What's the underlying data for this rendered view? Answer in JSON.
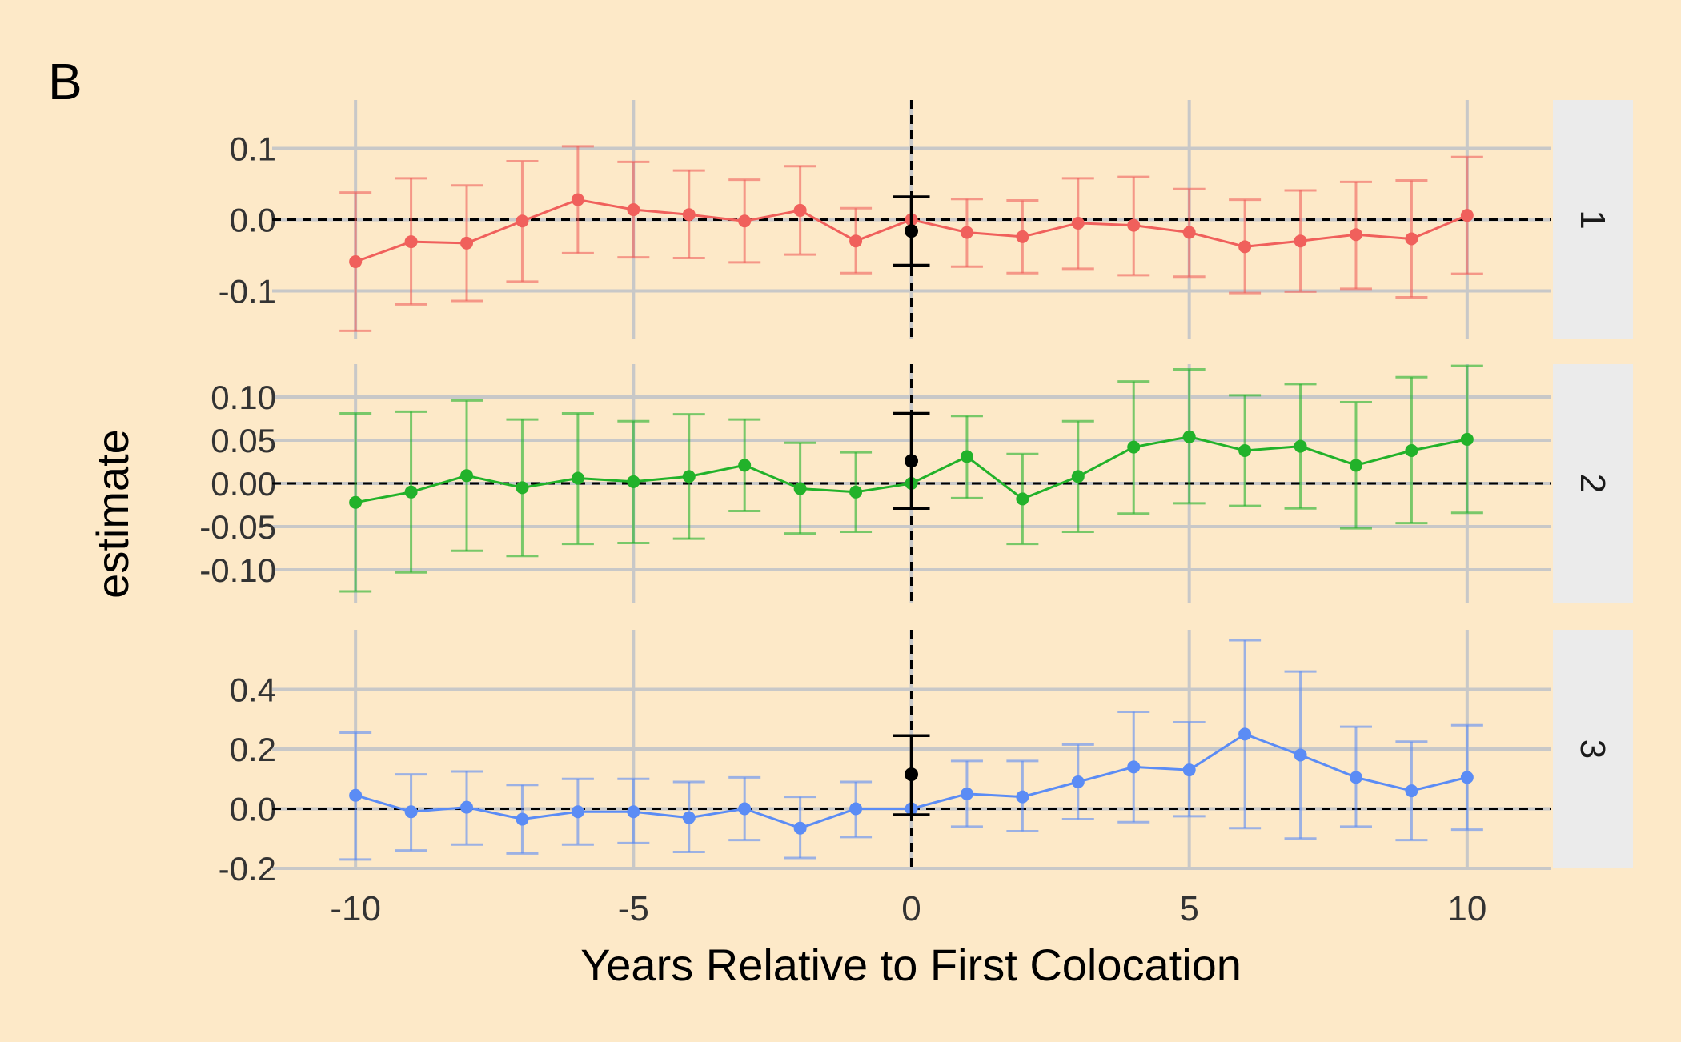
{
  "panel_label": "B",
  "chart_data": {
    "type": "line",
    "layout": "faceted",
    "xlabel": "Years Relative to First Colocation",
    "ylabel": "estimate",
    "xlim": [
      -11.5,
      11.5
    ],
    "x_ticks": [
      -10,
      -5,
      0,
      5,
      10
    ],
    "x_tick_labels": [
      "-10",
      "-5",
      "0",
      "5",
      "10"
    ],
    "x": [
      -10,
      -9,
      -8,
      -7,
      -6,
      -5,
      -4,
      -3,
      -2,
      -1,
      0,
      1,
      2,
      3,
      4,
      5,
      6,
      7,
      8,
      9,
      10
    ],
    "reference_lines": {
      "x": 0,
      "y": 0,
      "style": "dashed"
    },
    "colors": {
      "background": "#fde9c8",
      "grid": "#c8c8c8",
      "strip": "#ebebeb",
      "series_1": "#f0605c",
      "series_2": "#22b22a",
      "series_3": "#5b8cf5",
      "highlight": "#000000"
    },
    "facets": [
      {
        "strip_label": "1",
        "ylim": [
          -0.168,
          0.168
        ],
        "y_ticks": [
          0.1,
          0.0,
          -0.1
        ],
        "y_tick_labels": [
          "0.1",
          "0.0",
          "-0.1"
        ],
        "color": "#f0605c",
        "points": [
          {
            "x": -10,
            "y": -0.059,
            "lo": -0.156,
            "hi": 0.038
          },
          {
            "x": -9,
            "y": -0.031,
            "lo": -0.119,
            "hi": 0.058
          },
          {
            "x": -8,
            "y": -0.033,
            "lo": -0.114,
            "hi": 0.048
          },
          {
            "x": -7,
            "y": -0.002,
            "lo": -0.087,
            "hi": 0.082
          },
          {
            "x": -6,
            "y": 0.028,
            "lo": -0.047,
            "hi": 0.103
          },
          {
            "x": -5,
            "y": 0.014,
            "lo": -0.053,
            "hi": 0.081
          },
          {
            "x": -4,
            "y": 0.007,
            "lo": -0.054,
            "hi": 0.069
          },
          {
            "x": -3,
            "y": -0.002,
            "lo": -0.06,
            "hi": 0.056
          },
          {
            "x": -2,
            "y": 0.013,
            "lo": -0.049,
            "hi": 0.075
          },
          {
            "x": -1,
            "y": -0.03,
            "lo": -0.075,
            "hi": 0.016
          },
          {
            "x": 0,
            "y": 0.0,
            "lo": 0.0,
            "hi": 0.0
          },
          {
            "x": 1,
            "y": -0.018,
            "lo": -0.066,
            "hi": 0.029
          },
          {
            "x": 2,
            "y": -0.024,
            "lo": -0.075,
            "hi": 0.027
          },
          {
            "x": 3,
            "y": -0.005,
            "lo": -0.069,
            "hi": 0.058
          },
          {
            "x": 4,
            "y": -0.008,
            "lo": -0.078,
            "hi": 0.06
          },
          {
            "x": 5,
            "y": -0.018,
            "lo": -0.08,
            "hi": 0.043
          },
          {
            "x": 6,
            "y": -0.038,
            "lo": -0.103,
            "hi": 0.028
          },
          {
            "x": 7,
            "y": -0.03,
            "lo": -0.101,
            "hi": 0.041
          },
          {
            "x": 8,
            "y": -0.021,
            "lo": -0.097,
            "hi": 0.053
          },
          {
            "x": 9,
            "y": -0.027,
            "lo": -0.109,
            "hi": 0.055
          },
          {
            "x": 10,
            "y": 0.006,
            "lo": -0.076,
            "hi": 0.088
          }
        ],
        "highlight": {
          "x": 0,
          "y": -0.016,
          "lo": -0.064,
          "hi": 0.032
        }
      },
      {
        "strip_label": "2",
        "ylim": [
          -0.138,
          0.138
        ],
        "y_ticks": [
          0.1,
          0.05,
          0.0,
          -0.05,
          -0.1
        ],
        "y_tick_labels": [
          "0.10",
          "0.05",
          "0.00",
          "-0.05",
          "-0.10"
        ],
        "color": "#22b22a",
        "points": [
          {
            "x": -10,
            "y": -0.022,
            "lo": -0.125,
            "hi": 0.081
          },
          {
            "x": -9,
            "y": -0.01,
            "lo": -0.103,
            "hi": 0.083
          },
          {
            "x": -8,
            "y": 0.009,
            "lo": -0.078,
            "hi": 0.096
          },
          {
            "x": -7,
            "y": -0.005,
            "lo": -0.084,
            "hi": 0.074
          },
          {
            "x": -6,
            "y": 0.006,
            "lo": -0.07,
            "hi": 0.081
          },
          {
            "x": -5,
            "y": 0.002,
            "lo": -0.069,
            "hi": 0.072
          },
          {
            "x": -4,
            "y": 0.008,
            "lo": -0.064,
            "hi": 0.08
          },
          {
            "x": -3,
            "y": 0.021,
            "lo": -0.032,
            "hi": 0.074
          },
          {
            "x": -2,
            "y": -0.006,
            "lo": -0.058,
            "hi": 0.047
          },
          {
            "x": -1,
            "y": -0.01,
            "lo": -0.056,
            "hi": 0.036
          },
          {
            "x": 0,
            "y": 0.0,
            "lo": 0.0,
            "hi": 0.0
          },
          {
            "x": 1,
            "y": 0.031,
            "lo": -0.017,
            "hi": 0.078
          },
          {
            "x": 2,
            "y": -0.018,
            "lo": -0.07,
            "hi": 0.034
          },
          {
            "x": 3,
            "y": 0.008,
            "lo": -0.056,
            "hi": 0.072
          },
          {
            "x": 4,
            "y": 0.042,
            "lo": -0.035,
            "hi": 0.118
          },
          {
            "x": 5,
            "y": 0.054,
            "lo": -0.023,
            "hi": 0.132
          },
          {
            "x": 6,
            "y": 0.038,
            "lo": -0.026,
            "hi": 0.102
          },
          {
            "x": 7,
            "y": 0.043,
            "lo": -0.029,
            "hi": 0.115
          },
          {
            "x": 8,
            "y": 0.021,
            "lo": -0.052,
            "hi": 0.094
          },
          {
            "x": 9,
            "y": 0.038,
            "lo": -0.046,
            "hi": 0.123
          },
          {
            "x": 10,
            "y": 0.051,
            "lo": -0.034,
            "hi": 0.136
          }
        ],
        "highlight": {
          "x": 0,
          "y": 0.026,
          "lo": -0.029,
          "hi": 0.081
        }
      },
      {
        "strip_label": "3",
        "ylim": [
          -0.2,
          0.6
        ],
        "y_ticks": [
          0.4,
          0.2,
          0.0,
          -0.2
        ],
        "y_tick_labels": [
          "0.4",
          "0.2",
          "0.0",
          "-0.2"
        ],
        "color": "#5b8cf5",
        "points": [
          {
            "x": -10,
            "y": 0.045,
            "lo": -0.17,
            "hi": 0.255
          },
          {
            "x": -9,
            "y": -0.01,
            "lo": -0.14,
            "hi": 0.115
          },
          {
            "x": -8,
            "y": 0.005,
            "lo": -0.12,
            "hi": 0.125
          },
          {
            "x": -7,
            "y": -0.035,
            "lo": -0.15,
            "hi": 0.08
          },
          {
            "x": -6,
            "y": -0.01,
            "lo": -0.12,
            "hi": 0.1
          },
          {
            "x": -5,
            "y": -0.01,
            "lo": -0.115,
            "hi": 0.1
          },
          {
            "x": -4,
            "y": -0.03,
            "lo": -0.145,
            "hi": 0.09
          },
          {
            "x": -3,
            "y": 0.0,
            "lo": -0.105,
            "hi": 0.105
          },
          {
            "x": -2,
            "y": -0.065,
            "lo": -0.165,
            "hi": 0.04
          },
          {
            "x": -1,
            "y": 0.0,
            "lo": -0.095,
            "hi": 0.09
          },
          {
            "x": 0,
            "y": 0.0,
            "lo": 0.0,
            "hi": 0.0
          },
          {
            "x": 1,
            "y": 0.05,
            "lo": -0.06,
            "hi": 0.16
          },
          {
            "x": 2,
            "y": 0.04,
            "lo": -0.075,
            "hi": 0.16
          },
          {
            "x": 3,
            "y": 0.09,
            "lo": -0.035,
            "hi": 0.215
          },
          {
            "x": 4,
            "y": 0.14,
            "lo": -0.045,
            "hi": 0.325
          },
          {
            "x": 5,
            "y": 0.13,
            "lo": -0.025,
            "hi": 0.29
          },
          {
            "x": 6,
            "y": 0.25,
            "lo": -0.065,
            "hi": 0.565
          },
          {
            "x": 7,
            "y": 0.18,
            "lo": -0.1,
            "hi": 0.46
          },
          {
            "x": 8,
            "y": 0.105,
            "lo": -0.06,
            "hi": 0.275
          },
          {
            "x": 9,
            "y": 0.06,
            "lo": -0.105,
            "hi": 0.225
          },
          {
            "x": 10,
            "y": 0.105,
            "lo": -0.07,
            "hi": 0.28
          }
        ],
        "highlight": {
          "x": 0,
          "y": 0.115,
          "lo": -0.02,
          "hi": 0.245
        }
      }
    ]
  }
}
